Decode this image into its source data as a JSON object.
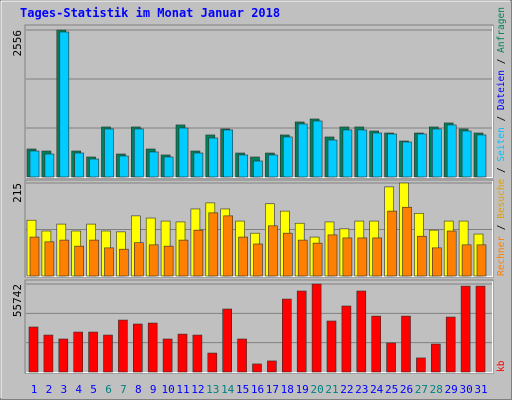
{
  "chart_data": {
    "type": "bar",
    "title": "Tages-Statistik im Monat Januar 2018",
    "categories": [
      "1",
      "2",
      "3",
      "4",
      "5",
      "6",
      "7",
      "8",
      "9",
      "10",
      "11",
      "12",
      "13",
      "14",
      "15",
      "16",
      "17",
      "18",
      "19",
      "20",
      "21",
      "22",
      "23",
      "24",
      "25",
      "26",
      "27",
      "28",
      "29",
      "30",
      "31"
    ],
    "category_colors": [
      "#0000ff",
      "#0000ff",
      "#0000ff",
      "#0000ff",
      "#0000ff",
      "#008080",
      "#008080",
      "#0000ff",
      "#0000ff",
      "#0000ff",
      "#0000ff",
      "#0000ff",
      "#008080",
      "#008080",
      "#0000ff",
      "#0000ff",
      "#0000ff",
      "#0000ff",
      "#0000ff",
      "#008080",
      "#008080",
      "#0000ff",
      "#0000ff",
      "#0000ff",
      "#0000ff",
      "#0000ff",
      "#008080",
      "#008080",
      "#0000ff",
      "#0000ff",
      "#0000ff"
    ],
    "extra_legend": {
      "name": "Seiten",
      "color": "#00c0ff"
    },
    "panels": [
      {
        "ylim": [
          0,
          2556
        ],
        "yticks": [
          2556
        ],
        "series": [
          {
            "name": "Anfragen",
            "color": "#00805c",
            "values": [
              487,
              452,
              2556,
              452,
              348,
              870,
              400,
              870,
              487,
              383,
              905,
              452,
              731,
              835,
              417,
              348,
              417,
              731,
              957,
              1009,
              696,
              870,
              870,
              800,
              765,
              626,
              765,
              870,
              940,
              835,
              765
            ]
          },
          {
            "name": "Dateien",
            "color": "#0000ff",
            "bar_color": "#00ccff",
            "values": [
              452,
              400,
              2521,
              417,
              313,
              835,
              365,
              835,
              435,
              348,
              852,
              417,
              678,
              818,
              383,
              278,
              383,
              696,
              922,
              974,
              643,
              818,
              818,
              765,
              748,
              609,
              748,
              835,
              905,
              800,
              731
            ]
          }
        ]
      },
      {
        "ylim": [
          0,
          215
        ],
        "yticks": [
          215
        ],
        "series": [
          {
            "name": "Besuche",
            "color": "#ffff00",
            "label_color": "#e0a000",
            "values": [
              129,
              104,
              120,
              104,
              120,
              104,
              102,
              139,
              134,
              127,
              125,
              155,
              169,
              155,
              127,
              99,
              167,
              150,
              122,
              90,
              125,
              109,
              127,
              127,
              206,
              215,
              145,
              106,
              127,
              127,
              97
            ]
          },
          {
            "name": "Rechner",
            "color": "#ff8000",
            "values": [
              90,
              79,
              83,
              69,
              83,
              65,
              62,
              77,
              72,
              69,
              83,
              106,
              146,
              139,
              90,
              74,
              116,
              99,
              83,
              76,
              95,
              88,
              88,
              88,
              150,
              159,
              92,
              65,
              104,
              72,
              72
            ]
          }
        ]
      },
      {
        "ylim": [
          0,
          55742
        ],
        "yticks": [
          55742
        ],
        "series": [
          {
            "name": "kb",
            "color": "#ff0000",
            "values": [
              28500,
              23400,
              20900,
              25300,
              25300,
              23400,
              32900,
              30400,
              31000,
              20900,
              24000,
              23400,
              12000,
              39900,
              20900,
              5100,
              7000,
              46200,
              51300,
              55742,
              32300,
              41800,
              51300,
              35400,
              18400,
              35400,
              8900,
              17700,
              34800,
              54400,
              54400
            ]
          }
        ]
      }
    ]
  }
}
